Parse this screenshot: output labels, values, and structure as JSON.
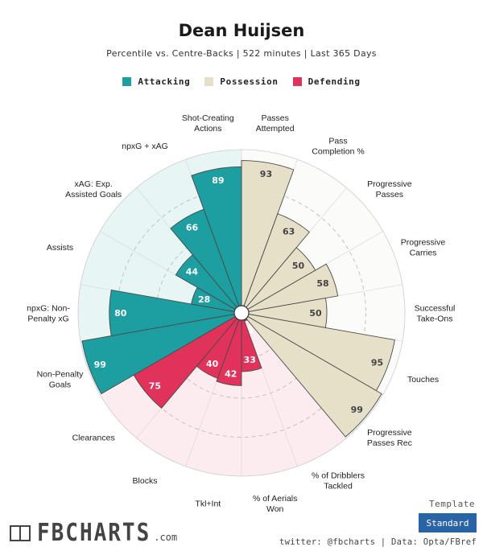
{
  "header": {
    "title": "Dean Huijsen",
    "subtitle": "Percentile vs. Centre-Backs | 522 minutes | Last 365 Days"
  },
  "legend": [
    {
      "label": "Attacking",
      "color": "#1d9ea0"
    },
    {
      "label": "Possession",
      "color": "#e6e0c9"
    },
    {
      "label": "Defending",
      "color": "#e0325a"
    }
  ],
  "chart_data": {
    "type": "radar-bar",
    "scale": [
      0,
      100
    ],
    "groups": {
      "Attacking": {
        "bar": "#1d9ea0",
        "bg": "#e8f5f5",
        "value_text": "#ffffff"
      },
      "Possession": {
        "bar": "#e6e0c9",
        "bg": "#fbfbf9",
        "value_text": "#444444"
      },
      "Defending": {
        "bar": "#e0325a",
        "bg": "#fdecef",
        "value_text": "#ffffff"
      }
    },
    "metrics": [
      {
        "label": "Passes\nAttempted",
        "value": 93,
        "group": "Possession"
      },
      {
        "label": "Pass\nCompletion %",
        "value": 63,
        "group": "Possession"
      },
      {
        "label": "Progressive\nPasses",
        "value": 50,
        "group": "Possession"
      },
      {
        "label": "Progressive\nCarries",
        "value": 58,
        "group": "Possession"
      },
      {
        "label": "Successful\nTake-Ons",
        "value": 50,
        "group": "Possession"
      },
      {
        "label": "Touches",
        "value": 95,
        "group": "Possession"
      },
      {
        "label": "Progressive\nPasses Rec",
        "value": 99,
        "group": "Possession"
      },
      {
        "label": "% of Dribblers\nTackled",
        "value": 1,
        "group": "Defending"
      },
      {
        "label": "% of Aerials\nWon",
        "value": 33,
        "group": "Defending"
      },
      {
        "label": "Tkl+Int",
        "value": 42,
        "group": "Defending"
      },
      {
        "label": "Blocks",
        "value": 40,
        "group": "Defending"
      },
      {
        "label": "Clearances",
        "value": 75,
        "group": "Defending"
      },
      {
        "label": "Non-Penalty\nGoals",
        "value": 99,
        "group": "Attacking"
      },
      {
        "label": "npxG: Non-\nPenalty xG",
        "value": 80,
        "group": "Attacking"
      },
      {
        "label": "Assists",
        "value": 28,
        "group": "Attacking"
      },
      {
        "label": "xAG: Exp.\nAssisted Goals",
        "value": 44,
        "group": "Attacking"
      },
      {
        "label": "npxG + xAG",
        "value": 66,
        "group": "Attacking"
      },
      {
        "label": "Shot-Creating\nActions",
        "value": 89,
        "group": "Attacking"
      }
    ]
  },
  "footer": {
    "logo_text": "FBCHARTS",
    "logo_suffix": ".com",
    "template_label": "Template",
    "template_button": "Standard",
    "credits": "twitter: @fbcharts | Data: Opta/FBref"
  }
}
